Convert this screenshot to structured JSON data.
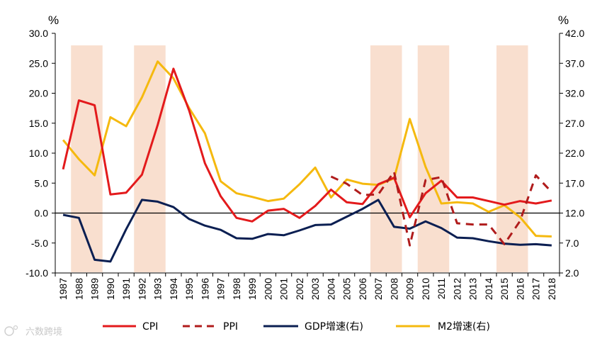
{
  "chart_data": {
    "type": "line",
    "title": "",
    "left_unit": "%",
    "right_unit": "%",
    "x": [
      "1987",
      "1988",
      "1989",
      "1990",
      "1991",
      "1992",
      "1993",
      "1994",
      "1995",
      "1996",
      "1997",
      "1998",
      "1999",
      "2000",
      "2001",
      "2002",
      "2003",
      "2004",
      "2005",
      "2006",
      "2007",
      "2008",
      "2009",
      "2010",
      "2011",
      "2012",
      "2013",
      "2014",
      "2015",
      "2016",
      "2017",
      "2018"
    ],
    "y_left": {
      "ticks": [
        "-10.0",
        "-5.0",
        "0.0",
        "5.0",
        "10.0",
        "15.0",
        "20.0",
        "25.0",
        "30.0"
      ],
      "lim": [
        -10,
        30
      ]
    },
    "y_right": {
      "ticks": [
        "2.0",
        "7.0",
        "12.0",
        "17.0",
        "22.0",
        "27.0",
        "32.0",
        "37.0",
        "42.0"
      ],
      "lim": [
        2,
        42
      ]
    },
    "shaded_periods": [
      {
        "from": "1988",
        "to": "1989"
      },
      {
        "from": "1992",
        "to": "1993"
      },
      {
        "from": "2007",
        "to": "2008"
      },
      {
        "from": "2010",
        "to": "2011"
      },
      {
        "from": "2015",
        "to": "2016"
      }
    ],
    "series": [
      {
        "name": "CPI",
        "axis": "left",
        "color": "#e31a1c",
        "style": "solid",
        "values": [
          7.3,
          18.8,
          18.0,
          3.1,
          3.4,
          6.4,
          14.7,
          24.1,
          17.1,
          8.3,
          2.8,
          -0.8,
          -1.4,
          0.4,
          0.7,
          -0.8,
          1.2,
          3.9,
          1.8,
          1.5,
          4.8,
          5.9,
          -0.7,
          3.3,
          5.4,
          2.6,
          2.6,
          2.0,
          1.4,
          2.0,
          1.6,
          2.1
        ]
      },
      {
        "name": "PPI",
        "axis": "left",
        "color": "#b01c1c",
        "style": "dashed",
        "values": [
          null,
          null,
          null,
          null,
          null,
          null,
          null,
          null,
          null,
          null,
          null,
          null,
          null,
          null,
          null,
          null,
          null,
          6.1,
          4.9,
          3.0,
          3.1,
          6.9,
          -5.4,
          5.5,
          6.0,
          -1.7,
          -1.9,
          -1.9,
          -5.2,
          -1.3,
          6.3,
          3.5
        ]
      },
      {
        "name": "GDP增速(右)",
        "axis": "right",
        "color": "#0b1f52",
        "style": "solid",
        "values": [
          11.7,
          11.2,
          4.2,
          3.9,
          9.3,
          14.2,
          13.9,
          13.0,
          11.0,
          9.9,
          9.2,
          7.8,
          7.7,
          8.5,
          8.3,
          9.1,
          10.0,
          10.1,
          11.4,
          12.7,
          14.2,
          9.7,
          9.4,
          10.6,
          9.5,
          7.9,
          7.8,
          7.3,
          6.9,
          6.7,
          6.8,
          6.6
        ]
      },
      {
        "name": "M2增速(右)",
        "axis": "right",
        "color": "#f5b90f",
        "style": "solid",
        "values": [
          24.2,
          21.0,
          18.3,
          28.0,
          26.5,
          31.3,
          37.3,
          34.5,
          29.5,
          25.3,
          17.3,
          15.3,
          14.7,
          14.0,
          14.4,
          16.8,
          19.6,
          14.6,
          17.6,
          16.9,
          16.7,
          17.8,
          27.7,
          19.7,
          13.6,
          13.8,
          13.6,
          12.2,
          13.3,
          11.3,
          8.2,
          8.1
        ]
      }
    ],
    "legend": [
      "CPI",
      "PPI",
      "GDP增速(右)",
      "M2增速(右)"
    ],
    "legend_position": "bottom",
    "zero_line": true,
    "grid": false
  },
  "watermark": "六数跨境"
}
